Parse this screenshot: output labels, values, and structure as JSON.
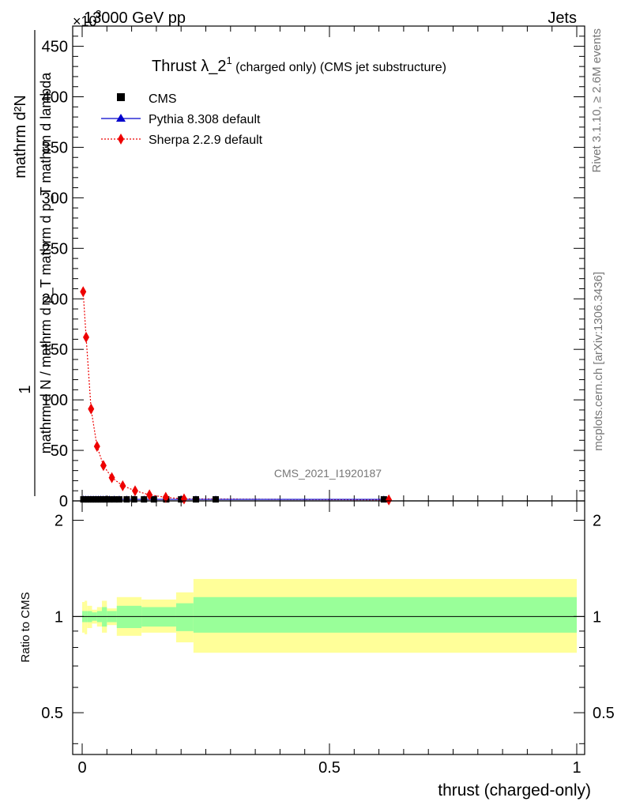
{
  "header": {
    "energy_label": "13000 GeV pp",
    "process_label": "Jets",
    "exponent_marker": "×10",
    "exponent_value": "3"
  },
  "side_labels": {
    "rivet": "Rivet 3.1.10, ≥ 2.6M events",
    "mcplots": "mcplots.cern.ch [arXiv:1306.3436]"
  },
  "watermark": "CMS_2021_I1920187",
  "chart_data": [
    {
      "type": "line",
      "title_main": "Thrust λ_2",
      "title_sup": "1",
      "title_sub": " (charged only) (CMS jet substructure)",
      "ylabel_numerator_1": "1",
      "ylabel_denominator": "mathrm d N / mathrm d p_T mathrm d p_T mathrm d lambda",
      "ylabel_numerator_2": "mathrm d²N",
      "xlabel": "thrust (charged-only)",
      "xlim": [
        0,
        1
      ],
      "ylim": [
        0,
        470
      ],
      "y_scale_factor": 1000,
      "x_ticks": [
        "0",
        "0.5",
        "1"
      ],
      "y_ticks": [
        0,
        50,
        100,
        150,
        200,
        250,
        300,
        350,
        400,
        450
      ],
      "legend": {
        "cms": "CMS",
        "pythia": "Pythia 8.308 default",
        "sherpa": "Sherpa 2.2.9 default"
      },
      "series": [
        {
          "name": "CMS",
          "color": "#000000",
          "marker": "square",
          "x": [
            0.0025,
            0.0075,
            0.0125,
            0.0175,
            0.0225,
            0.0275,
            0.0325,
            0.0375,
            0.0425,
            0.0475,
            0.055,
            0.065,
            0.075,
            0.09,
            0.105,
            0.125,
            0.145,
            0.17,
            0.2,
            0.23,
            0.27,
            0.61
          ],
          "y": [
            1.5,
            1.5,
            1.5,
            1.5,
            1.5,
            1.5,
            1.5,
            1.5,
            1.5,
            1.5,
            1.5,
            1.5,
            1.5,
            1.5,
            1.5,
            1.5,
            1.5,
            1.5,
            1.5,
            1.5,
            1.5,
            1.5
          ]
        },
        {
          "name": "Pythia 8.308 default",
          "color": "#0000cc",
          "marker": "triangle",
          "x": [
            0.0025,
            0.0075,
            0.0125,
            0.0175,
            0.0225,
            0.0275,
            0.0325,
            0.0375,
            0.0425,
            0.0475,
            0.055,
            0.065,
            0.075,
            0.09,
            0.105,
            0.125,
            0.145,
            0.17,
            0.2,
            0.23,
            0.27,
            0.61
          ],
          "y": [
            1.5,
            1.5,
            1.5,
            1.5,
            1.5,
            1.5,
            1.5,
            1.5,
            1.5,
            1.5,
            1.5,
            1.5,
            1.5,
            1.5,
            1.5,
            1.5,
            1.5,
            1.5,
            1.5,
            1.5,
            1.5,
            1.5
          ]
        },
        {
          "name": "Sherpa 2.2.9 default",
          "color": "#ee0000",
          "marker": "diamond",
          "x": [
            0.002,
            0.008,
            0.018,
            0.03,
            0.043,
            0.06,
            0.082,
            0.107,
            0.136,
            0.169,
            0.206,
            0.62
          ],
          "y": [
            207,
            162,
            91,
            54,
            35,
            23,
            15,
            10,
            6,
            3.5,
            2,
            1
          ]
        }
      ]
    },
    {
      "type": "area",
      "ylabel": "Ratio to CMS",
      "xlim": [
        0,
        1
      ],
      "ylim": [
        0.37,
        2.3
      ],
      "y_scale": "log",
      "y_ticks": [
        "0.5",
        "1",
        "2"
      ],
      "y_tick_values": [
        0.5,
        1,
        2
      ],
      "reference_line": 1,
      "colors": {
        "stat_band": "#99ff99",
        "total_band": "#ffff99",
        "ref_line": "#000000"
      },
      "bins": [
        {
          "x0": 0.0,
          "x1": 0.005,
          "stat": [
            0.96,
            1.04
          ],
          "total": [
            0.89,
            1.11
          ]
        },
        {
          "x0": 0.005,
          "x1": 0.01,
          "stat": [
            0.96,
            1.04
          ],
          "total": [
            0.88,
            1.12
          ]
        },
        {
          "x0": 0.01,
          "x1": 0.02,
          "stat": [
            0.96,
            1.04
          ],
          "total": [
            0.92,
            1.08
          ]
        },
        {
          "x0": 0.02,
          "x1": 0.03,
          "stat": [
            0.97,
            1.03
          ],
          "total": [
            0.95,
            1.05
          ]
        },
        {
          "x0": 0.03,
          "x1": 0.04,
          "stat": [
            0.96,
            1.04
          ],
          "total": [
            0.93,
            1.07
          ]
        },
        {
          "x0": 0.04,
          "x1": 0.05,
          "stat": [
            0.93,
            1.07
          ],
          "total": [
            0.89,
            1.12
          ]
        },
        {
          "x0": 0.05,
          "x1": 0.07,
          "stat": [
            0.96,
            1.04
          ],
          "total": [
            0.94,
            1.06
          ]
        },
        {
          "x0": 0.07,
          "x1": 0.12,
          "stat": [
            0.92,
            1.08
          ],
          "total": [
            0.87,
            1.15
          ]
        },
        {
          "x0": 0.12,
          "x1": 0.19,
          "stat": [
            0.93,
            1.07
          ],
          "total": [
            0.89,
            1.13
          ]
        },
        {
          "x0": 0.19,
          "x1": 0.225,
          "stat": [
            0.9,
            1.1
          ],
          "total": [
            0.83,
            1.19
          ]
        },
        {
          "x0": 0.225,
          "x1": 1.0,
          "stat": [
            0.89,
            1.15
          ],
          "total": [
            0.77,
            1.31
          ]
        }
      ]
    }
  ]
}
